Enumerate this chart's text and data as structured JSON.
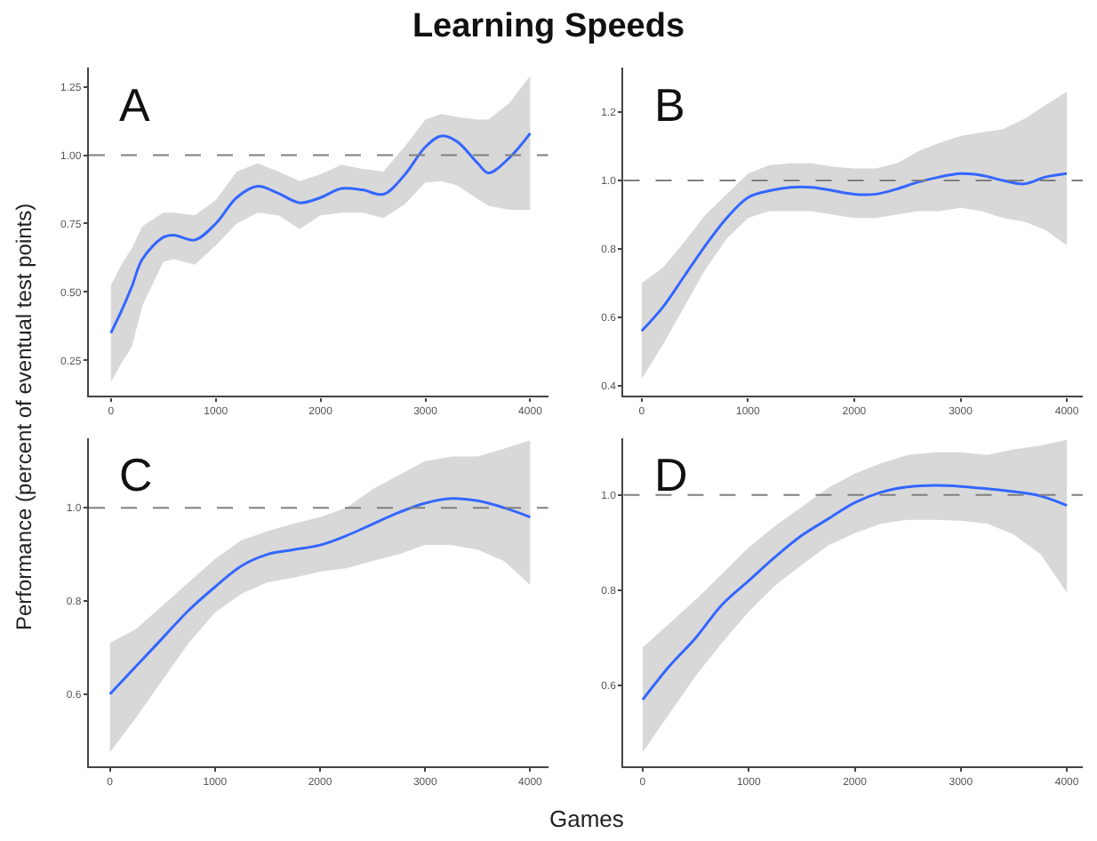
{
  "chart_data": [
    {
      "type": "line",
      "title": "Learning Speeds",
      "xlabel": "Games",
      "ylabel": "Performance (percent of eventual test points)",
      "annotations": [
        "A"
      ],
      "marker": "none",
      "line_style": "solid",
      "xlim": [
        -210,
        4170
      ],
      "ylim": [
        0.12,
        1.32
      ],
      "xticks": [
        0,
        1000,
        2000,
        3000,
        4000
      ],
      "yticks": [
        {
          "value": 0.25,
          "label": "0.25"
        },
        {
          "value": 0.5,
          "label": "0.50"
        },
        {
          "value": 0.75,
          "label": "0.75"
        },
        {
          "value": 1.0,
          "label": "1.00"
        },
        {
          "value": 1.25,
          "label": "1.25"
        }
      ],
      "ref_lines": [
        {
          "axis": "y",
          "value": 1.0,
          "color": "#7f7f7f",
          "line_style": "dashed"
        }
      ],
      "x": [
        0,
        100,
        200,
        300,
        500,
        600,
        800,
        1000,
        1200,
        1400,
        1600,
        1800,
        2000,
        2200,
        2400,
        2600,
        2800,
        3000,
        3150,
        3300,
        3500,
        3600,
        3800,
        4000
      ],
      "series": [
        {
          "color": "#3366ff",
          "values": [
            0.35,
            0.43,
            0.52,
            0.62,
            0.7,
            0.708,
            0.69,
            0.75,
            0.845,
            0.886,
            0.86,
            0.826,
            0.845,
            0.878,
            0.873,
            0.857,
            0.927,
            1.03,
            1.07,
            1.05,
            0.97,
            0.935,
            0.99,
            1.08
          ],
          "lower": [
            0.17,
            0.24,
            0.3,
            0.45,
            0.61,
            0.62,
            0.6,
            0.67,
            0.75,
            0.79,
            0.78,
            0.73,
            0.78,
            0.79,
            0.79,
            0.77,
            0.82,
            0.9,
            0.905,
            0.89,
            0.84,
            0.815,
            0.8,
            0.8
          ],
          "upper": [
            0.525,
            0.6,
            0.66,
            0.74,
            0.79,
            0.79,
            0.78,
            0.835,
            0.94,
            0.97,
            0.94,
            0.905,
            0.93,
            0.965,
            0.95,
            0.94,
            1.03,
            1.13,
            1.15,
            1.14,
            1.13,
            1.13,
            1.19,
            1.29
          ]
        }
      ]
    },
    {
      "type": "line",
      "annotations": [
        "B"
      ],
      "marker": "none",
      "line_style": "solid",
      "xlim": [
        -170,
        4150
      ],
      "ylim": [
        0.37,
        1.33
      ],
      "xticks": [
        0,
        1000,
        2000,
        3000,
        4000
      ],
      "yticks": [
        0.4,
        0.6,
        0.8,
        {
          "value": 1.0,
          "label": "1.0"
        },
        1.2
      ],
      "ref_lines": [
        {
          "axis": "y",
          "value": 1.0,
          "color": "#7f7f7f",
          "line_style": "dashed"
        }
      ],
      "x": [
        0,
        200,
        400,
        600,
        800,
        1000,
        1200,
        1400,
        1600,
        1800,
        2000,
        2200,
        2400,
        2600,
        2800,
        3000,
        3200,
        3400,
        3600,
        3800,
        4000
      ],
      "series": [
        {
          "color": "#3366ff",
          "values": [
            0.56,
            0.63,
            0.72,
            0.81,
            0.89,
            0.95,
            0.97,
            0.98,
            0.98,
            0.97,
            0.96,
            0.96,
            0.975,
            0.995,
            1.01,
            1.02,
            1.015,
            1.0,
            0.99,
            1.01,
            1.02
          ],
          "lower": [
            0.42,
            0.52,
            0.63,
            0.74,
            0.83,
            0.89,
            0.91,
            0.91,
            0.91,
            0.9,
            0.89,
            0.89,
            0.9,
            0.91,
            0.91,
            0.92,
            0.91,
            0.89,
            0.88,
            0.855,
            0.81
          ],
          "upper": [
            0.7,
            0.745,
            0.82,
            0.9,
            0.96,
            1.02,
            1.045,
            1.05,
            1.05,
            1.04,
            1.035,
            1.035,
            1.05,
            1.085,
            1.11,
            1.13,
            1.14,
            1.15,
            1.18,
            1.22,
            1.26
          ]
        }
      ]
    },
    {
      "type": "line",
      "annotations": [
        "C"
      ],
      "marker": "none",
      "line_style": "solid",
      "xlim": [
        -200,
        4170
      ],
      "ylim": [
        0.445,
        1.15
      ],
      "xticks": [
        0,
        1000,
        2000,
        3000,
        4000
      ],
      "yticks": [
        0.6,
        0.8,
        {
          "value": 1.0,
          "label": "1.0"
        }
      ],
      "ref_lines": [
        {
          "axis": "y",
          "value": 1.0,
          "color": "#7f7f7f",
          "line_style": "dashed"
        }
      ],
      "x": [
        0,
        250,
        500,
        750,
        1000,
        1250,
        1500,
        1750,
        2000,
        2250,
        2500,
        2750,
        3000,
        3250,
        3500,
        3750,
        4000
      ],
      "series": [
        {
          "color": "#3366ff",
          "values": [
            0.6,
            0.66,
            0.72,
            0.78,
            0.83,
            0.875,
            0.9,
            0.91,
            0.92,
            0.94,
            0.965,
            0.99,
            1.01,
            1.02,
            1.015,
            1.0,
            0.98
          ],
          "lower": [
            0.475,
            0.55,
            0.63,
            0.71,
            0.775,
            0.815,
            0.84,
            0.85,
            0.863,
            0.87,
            0.886,
            0.9,
            0.92,
            0.92,
            0.91,
            0.886,
            0.835
          ],
          "upper": [
            0.71,
            0.74,
            0.79,
            0.84,
            0.89,
            0.93,
            0.95,
            0.966,
            0.98,
            1.0,
            1.04,
            1.07,
            1.1,
            1.11,
            1.11,
            1.127,
            1.145
          ]
        }
      ]
    },
    {
      "type": "line",
      "annotations": [
        "D"
      ],
      "marker": "none",
      "line_style": "solid",
      "xlim": [
        -180,
        4150
      ],
      "ylim": [
        0.43,
        1.12
      ],
      "xticks": [
        0,
        1000,
        2000,
        3000,
        4000
      ],
      "yticks": [
        0.6,
        0.8,
        {
          "value": 1.0,
          "label": "1.0"
        }
      ],
      "ref_lines": [
        {
          "axis": "y",
          "value": 1.0,
          "color": "#7f7f7f",
          "line_style": "dashed"
        }
      ],
      "x": [
        0,
        250,
        500,
        750,
        1000,
        1250,
        1500,
        1750,
        2000,
        2250,
        2500,
        2750,
        3000,
        3250,
        3500,
        3750,
        4000
      ],
      "series": [
        {
          "color": "#3366ff",
          "values": [
            0.57,
            0.64,
            0.7,
            0.77,
            0.82,
            0.87,
            0.915,
            0.95,
            0.984,
            1.006,
            1.017,
            1.02,
            1.018,
            1.013,
            1.007,
            0.998,
            0.978
          ],
          "lower": [
            0.46,
            0.54,
            0.62,
            0.69,
            0.755,
            0.81,
            0.853,
            0.894,
            0.92,
            0.94,
            0.948,
            0.948,
            0.946,
            0.94,
            0.917,
            0.876,
            0.795
          ],
          "upper": [
            0.68,
            0.73,
            0.78,
            0.835,
            0.89,
            0.935,
            0.975,
            1.015,
            1.045,
            1.067,
            1.084,
            1.09,
            1.09,
            1.084,
            1.096,
            1.104,
            1.116
          ]
        }
      ]
    }
  ]
}
